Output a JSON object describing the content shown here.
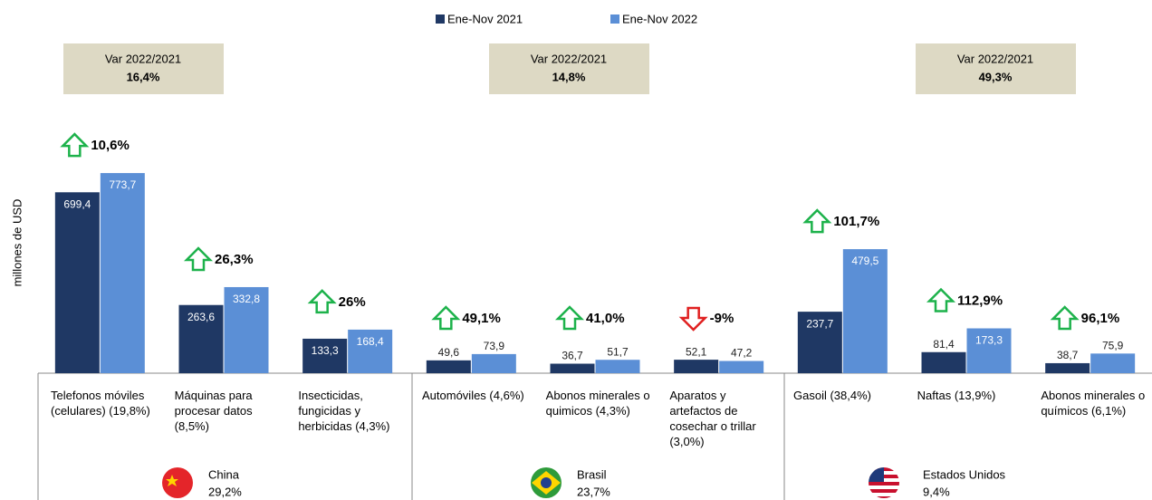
{
  "chart_data": {
    "type": "bar",
    "y_label": "millones de USD",
    "legend": "top",
    "ylim": [
      0,
      900
    ],
    "categories": [
      "Telefonos móviles (celulares) (19,8%)",
      "Máquinas para procesar datos (8,5%)",
      "Insecticidas, fungicidas y herbicidas (4,3%)",
      "Automóviles (4,6%)",
      "Abonos minerales o quimicos (4,3%)",
      "Aparatos y artefactos de cosechar o trillar (3,0%)",
      "Gasoil (38,4%)",
      "Naftas (13,9%)",
      "Abonos minerales o químicos (6,1%)"
    ],
    "series": [
      {
        "name": "Ene-Nov 2021",
        "color": "#1f3864",
        "values": [
          699.4,
          263.6,
          133.3,
          49.6,
          36.7,
          52.1,
          237.7,
          81.4,
          38.7
        ],
        "value_labels": [
          "699,4",
          "263,6",
          "133,3",
          "49,6",
          "36,7",
          "52,1",
          "237,7",
          "81,4",
          "38,7"
        ]
      },
      {
        "name": "Ene-Nov 2022",
        "color": "#5b8fd6",
        "values": [
          773.7,
          332.8,
          168.4,
          73.9,
          51.7,
          47.2,
          479.5,
          173.3,
          75.9
        ],
        "value_labels": [
          "773,7",
          "332,8",
          "168,4",
          "73,9",
          "51,7",
          "47,2",
          "479,5",
          "173,3",
          "75,9"
        ]
      }
    ],
    "changes": [
      {
        "label": "10,6%",
        "direction": "up"
      },
      {
        "label": "26,3%",
        "direction": "up"
      },
      {
        "label": "26%",
        "direction": "up"
      },
      {
        "label": "49,1%",
        "direction": "up"
      },
      {
        "label": "41,0%",
        "direction": "up"
      },
      {
        "label": "-9%",
        "direction": "down"
      },
      {
        "label": "101,7%",
        "direction": "up"
      },
      {
        "label": "112,9%",
        "direction": "up"
      },
      {
        "label": "96,1%",
        "direction": "up"
      }
    ],
    "groups": [
      {
        "name": "China",
        "share": "29,2%",
        "var_title": "Var 2022/2021",
        "var_value": "16,4%"
      },
      {
        "name": "Brasil",
        "share": "23,7%",
        "var_title": "Var 2022/2021",
        "var_value": "14,8%"
      },
      {
        "name": "Estados Unidos",
        "share": "9,4%",
        "var_title": "Var 2022/2021",
        "var_value": "49,3%"
      }
    ]
  }
}
